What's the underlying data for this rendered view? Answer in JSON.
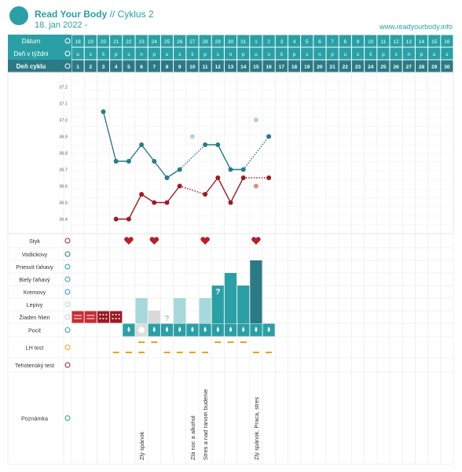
{
  "header": {
    "brand": "Read Your Body",
    "cycle": "// Cyklus 2",
    "date": "18. jan 2022 -",
    "site": "www.readyourbody.info"
  },
  "colors": {
    "teal": "#2aa0a6",
    "dark_teal": "#2b7a86",
    "dark_red": "#9b1b25",
    "light_teal": "#a6d8dc",
    "salmon": "#e58a80",
    "heart": "#b5202d",
    "orange": "#e8a21e",
    "gray_block": "#d9d9d9"
  },
  "rows": {
    "datum": "Dátum",
    "den_tyzdni": "Deň v týždni",
    "den_cyklu": "Deň cyklu",
    "styk": "Styk",
    "vodickovy": "Vodickovy",
    "priesvit": "Priesvit ťahavy",
    "biely": "Biely ťahavý",
    "kremovy": "Kremovy",
    "lepivy": "Lepivy",
    "ziadne": "Žiaden hlien",
    "pocit": "Pocit",
    "lh": "LH test",
    "tehotensky": "Tehotenský test",
    "poznamka": "Poznámka"
  },
  "chart_data": {
    "type": "line",
    "title": "",
    "dates": [
      "18",
      "19",
      "20",
      "21",
      "22",
      "23",
      "24",
      "25",
      "26",
      "27",
      "28",
      "29",
      "30",
      "31",
      "1",
      "2",
      "3",
      "4",
      "5",
      "6",
      "7",
      "8",
      "9",
      "10",
      "11",
      "12",
      "13",
      "14",
      "15",
      "16"
    ],
    "weekdays": [
      "u",
      "s",
      "š",
      "p",
      "s",
      "n",
      "p",
      "u",
      "s",
      "š",
      "p",
      "s",
      "n",
      "p",
      "u",
      "s",
      "š",
      "p",
      "s",
      "n",
      "p",
      "u",
      "s",
      "š",
      "p",
      "s",
      "n",
      "p",
      "u",
      "s"
    ],
    "cycle_days": [
      1,
      2,
      3,
      4,
      5,
      6,
      7,
      8,
      9,
      10,
      11,
      12,
      13,
      14,
      15,
      16,
      17,
      18,
      19,
      20,
      21,
      22,
      23,
      24,
      25,
      26,
      27,
      28,
      29,
      30
    ],
    "y_ticks": [
      37.2,
      37.1,
      37.0,
      36.9,
      36.8,
      36.7,
      36.6,
      36.5,
      36.4
    ],
    "ylim": [
      36.35,
      37.25
    ],
    "series": [
      {
        "color": "#2b7a86",
        "points": [
          [
            3,
            37.05
          ],
          [
            4,
            36.75
          ],
          [
            5,
            36.75
          ],
          [
            6,
            36.85
          ],
          [
            7,
            36.75
          ],
          [
            8,
            36.65
          ],
          [
            9,
            36.7
          ],
          [
            11,
            36.85
          ],
          [
            12,
            36.85
          ],
          [
            13,
            36.7
          ],
          [
            14,
            36.7
          ],
          [
            16,
            36.9
          ]
        ],
        "dotted_segments": [
          [
            9,
            11
          ],
          [
            14,
            16
          ]
        ],
        "excluded": [
          [
            10,
            36.9
          ],
          [
            15,
            37.0
          ]
        ]
      },
      {
        "color": "#9b1b25",
        "points": [
          [
            4,
            36.4
          ],
          [
            5,
            36.4
          ],
          [
            6,
            36.55
          ],
          [
            7,
            36.5
          ],
          [
            8,
            36.5
          ],
          [
            9,
            36.6
          ],
          [
            11,
            36.55
          ],
          [
            12,
            36.65
          ],
          [
            13,
            36.5
          ],
          [
            14,
            36.65
          ],
          [
            16,
            36.65
          ]
        ],
        "dotted_segments": [
          [
            9,
            11
          ],
          [
            14,
            16
          ]
        ],
        "excluded": [
          [
            15,
            36.6
          ]
        ]
      }
    ],
    "styk_days": [
      5,
      7,
      11,
      15
    ],
    "vodickovy_marker_day": 15,
    "mucus_bars": [
      {
        "day": 6,
        "level": "lepivy",
        "color": "#a6d8dc"
      },
      {
        "day": 7,
        "level": "ziadne",
        "color": "#d9d9d9"
      },
      {
        "day": 8,
        "level": "ziadne",
        "mark": "?",
        "color": "#ffffff"
      },
      {
        "day": 9,
        "level": "lepivy",
        "color": "#a6d8dc"
      },
      {
        "day": 11,
        "level": "lepivy",
        "color": "#a6d8dc"
      },
      {
        "day": 12,
        "level": "kremovy",
        "mark": "?",
        "color": "#2aa0a6"
      },
      {
        "day": 13,
        "level": "biely",
        "color": "#2aa0a6"
      },
      {
        "day": 14,
        "level": "kremovy",
        "color": "#2aa0a6"
      },
      {
        "day": 15,
        "level": "vodickovy",
        "color": "#2b7a86"
      }
    ],
    "period_days": [
      1,
      2
    ],
    "spotting_days": [
      3,
      4
    ],
    "pocit_days": [
      5,
      6,
      7,
      8,
      9,
      10,
      11,
      12,
      13,
      14,
      15,
      16
    ],
    "pocit_x_day": 6,
    "lh_upper_days": [
      6,
      7,
      12,
      13,
      14
    ],
    "lh_lower_days": [
      4,
      5,
      6,
      8,
      9,
      10,
      11,
      15,
      16
    ],
    "notes": [
      {
        "day": 6,
        "text": "Zlý spánok"
      },
      {
        "day": 10,
        "text": "Zlá noc a alkohol"
      },
      {
        "day": 11,
        "text": "Stres a nad ranom budenie"
      },
      {
        "day": 15,
        "text": "Zlý spánok. Praca, stres"
      }
    ]
  }
}
